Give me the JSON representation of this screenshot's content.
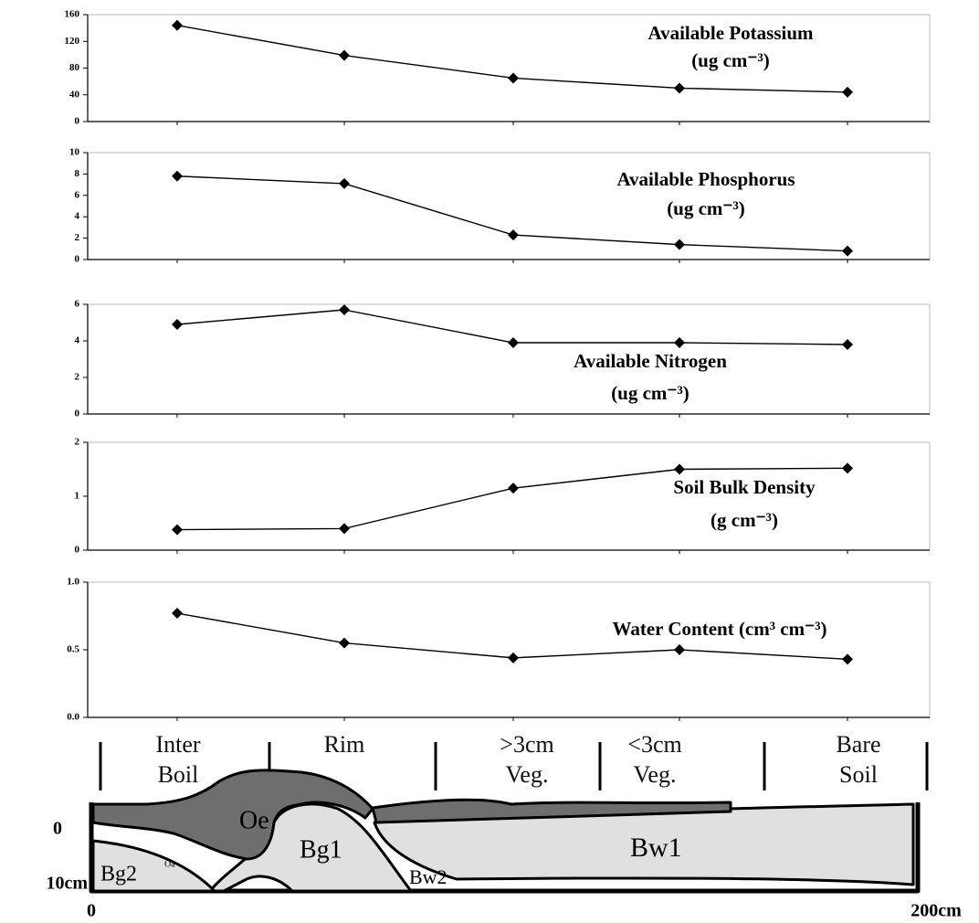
{
  "chart_data": [
    {
      "type": "line",
      "title": "Available Potassium",
      "subtitle": "(ug cm⁻³)",
      "values": [
        144,
        99,
        65,
        50,
        44
      ],
      "color": "#000000",
      "ylim": [
        0,
        160
      ],
      "yticks": [
        0,
        40,
        80,
        120,
        160
      ]
    },
    {
      "type": "line",
      "title": "Available Phosphorus",
      "subtitle": "(ug cm⁻³)",
      "values": [
        7.8,
        7.1,
        2.3,
        1.4,
        0.8
      ],
      "color": "#000000",
      "ylim": [
        0,
        10
      ],
      "yticks": [
        0,
        2,
        4,
        6,
        8,
        10
      ]
    },
    {
      "type": "line",
      "title": "Available Nitrogen",
      "subtitle": "(ug cm⁻³)",
      "values": [
        4.9,
        5.7,
        3.9,
        3.9,
        3.8
      ],
      "color": "#000000",
      "ylim": [
        0,
        6
      ],
      "yticks": [
        0,
        2,
        4,
        6
      ]
    },
    {
      "type": "line",
      "title": "Soil Bulk Density",
      "subtitle": "(g cm⁻³)",
      "values": [
        0.38,
        0.4,
        1.15,
        1.5,
        1.52
      ],
      "color": "#000000",
      "ylim": [
        0,
        2
      ],
      "yticks": [
        0,
        1,
        2
      ]
    },
    {
      "type": "line",
      "title": "Water Content (cm³ cm⁻³)",
      "categories": [
        "Inter Boil",
        "Rim",
        ">3cm Veg.",
        "<3cm Veg.",
        "Bare Soil"
      ],
      "values": [
        0.77,
        0.55,
        0.44,
        0.5,
        0.43
      ],
      "color": "#000000",
      "ylim": [
        0,
        1
      ],
      "yticks": [
        {
          "value": 0,
          "label": "0.0"
        },
        {
          "value": 0.5,
          "label": "0.5"
        },
        {
          "value": 1,
          "label": "1.0"
        }
      ]
    }
  ],
  "profile": {
    "horizons": [
      "Oe",
      "Bg1",
      "Bw1",
      "Bg2",
      "Oa",
      "Bw2"
    ],
    "depth_labels": [
      "0",
      "10cm"
    ],
    "distance_labels": [
      "0",
      "200cm"
    ]
  }
}
